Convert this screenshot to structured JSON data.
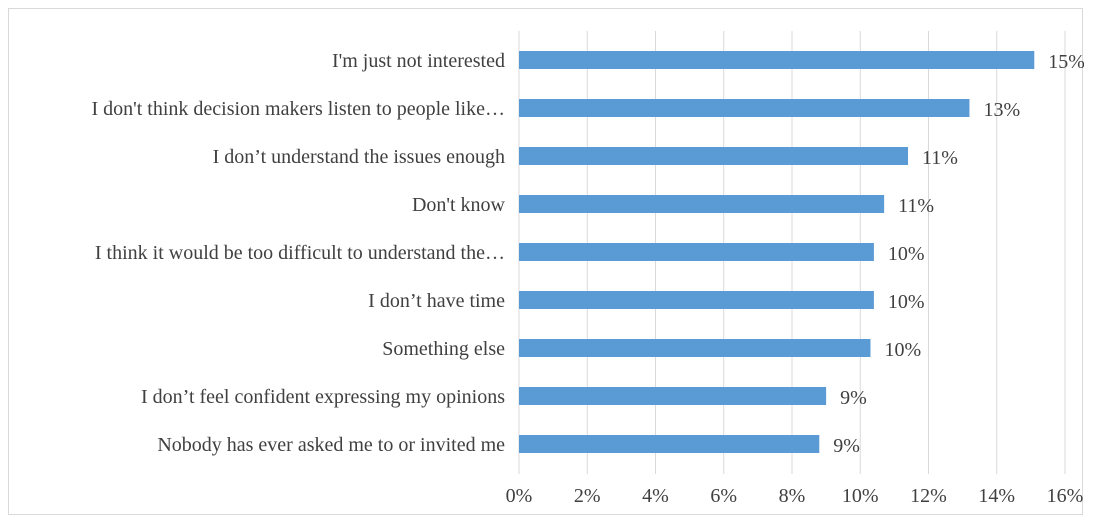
{
  "chart_data": {
    "type": "bar",
    "orientation": "horizontal",
    "categories": [
      "I'm just not interested",
      "I don't think decision makers listen to people like…",
      "I don’t understand the issues enough",
      "Don't know",
      "I think it would be too difficult to understand the…",
      "I don’t have time",
      "Something else",
      "I don’t feel confident expressing my opinions",
      "Nobody has ever asked me to or invited me"
    ],
    "values": [
      15.1,
      13.2,
      11.4,
      10.7,
      10.4,
      10.4,
      10.3,
      9.0,
      8.8
    ],
    "data_labels": [
      "15%",
      "13%",
      "11%",
      "11%",
      "10%",
      "10%",
      "10%",
      "9%",
      "9%"
    ],
    "x_ticks": [
      0,
      2,
      4,
      6,
      8,
      10,
      12,
      14,
      16
    ],
    "x_tick_labels": [
      "0%",
      "2%",
      "4%",
      "6%",
      "8%",
      "10%",
      "12%",
      "14%",
      "16%"
    ],
    "xlim": [
      0,
      16
    ],
    "title": "",
    "xlabel": "",
    "ylabel": "",
    "grid": "vertical",
    "legend": "none",
    "bar_color": "#5b9bd5",
    "grid_color": "#d9d9d9",
    "text_color": "#404040"
  }
}
